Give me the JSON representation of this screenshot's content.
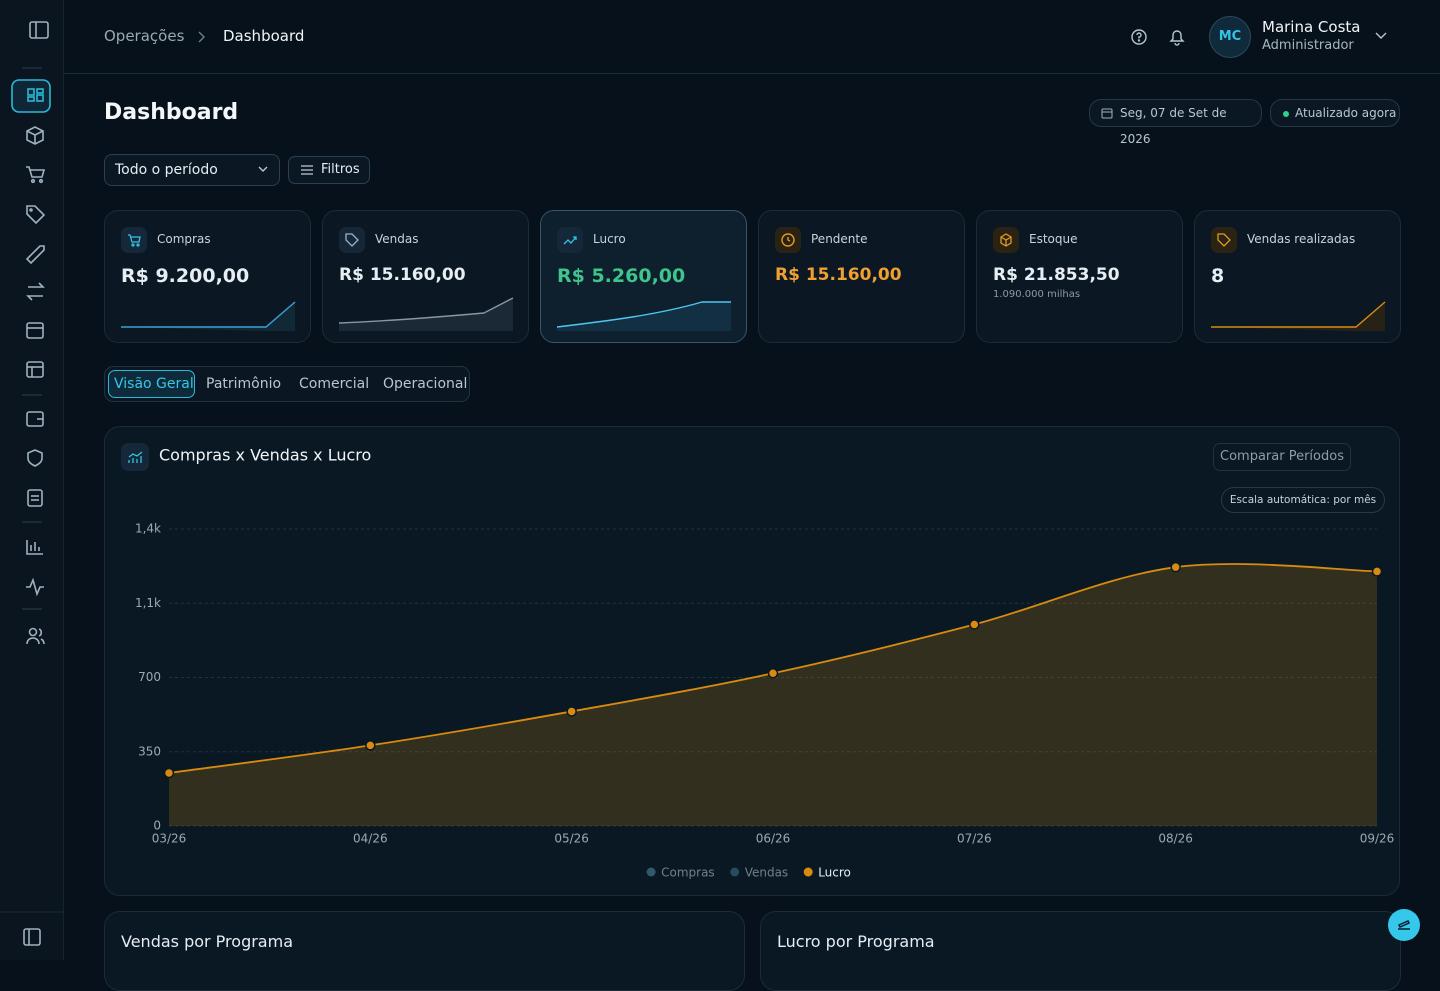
{
  "breadcrumb": [
    "Operações",
    "Dashboard"
  ],
  "user": {
    "initials": "MC",
    "name": "Marina Costa",
    "role": "Administrador"
  },
  "page_title": "Dashboard",
  "date": "Seg, 07 de Set de 2026",
  "status": "Atualizado agora",
  "period": "Todo o período",
  "filters": "Filtros",
  "cards": [
    {
      "label": "Compras",
      "value": "R$ 9.200,00"
    },
    {
      "label": "Vendas",
      "value": "R$ 15.160,00"
    },
    {
      "label": "Lucro",
      "value": "R$ 5.260,00"
    },
    {
      "label": "Pendente",
      "value": "R$ 15.160,00"
    },
    {
      "label": "Estoque",
      "value": "R$ 21.853,50",
      "sub": "1.090.000 milhas"
    },
    {
      "label": "Vendas realizadas",
      "value": "8"
    }
  ],
  "tabs": [
    "Visão Geral",
    "Patrimônio",
    "Comercial",
    "Operacional"
  ],
  "chart_data": {
    "type": "line",
    "title": "Compras x Vendas x Lucro",
    "compare_button": "Comparar Períodos",
    "scale_note": "Escala automática: por mês",
    "categories": [
      "03/26",
      "04/26",
      "05/26",
      "06/26",
      "07/26",
      "08/26",
      "09/26"
    ],
    "series": [
      {
        "name": "Compras",
        "color": "#2e5a6b",
        "visible": false,
        "values": [
          null,
          null,
          null,
          null,
          null,
          null,
          null
        ]
      },
      {
        "name": "Vendas",
        "color": "#264b5d",
        "visible": false,
        "values": [
          null,
          null,
          null,
          null,
          null,
          null,
          null
        ]
      },
      {
        "name": "Lucro",
        "color": "#d88b0e",
        "visible": true,
        "values": [
          250,
          380,
          540,
          720,
          950,
          1220,
          1200
        ]
      }
    ],
    "ylim": [
      0,
      1400
    ],
    "yticks": [
      0,
      350,
      700,
      {
        "value": 1050,
        "label": "1,1k"
      },
      {
        "value": 1400,
        "label": "1,4k"
      }
    ],
    "grid": true,
    "area": true
  },
  "panels": [
    "Vendas por Programa",
    "Lucro por Programa"
  ]
}
